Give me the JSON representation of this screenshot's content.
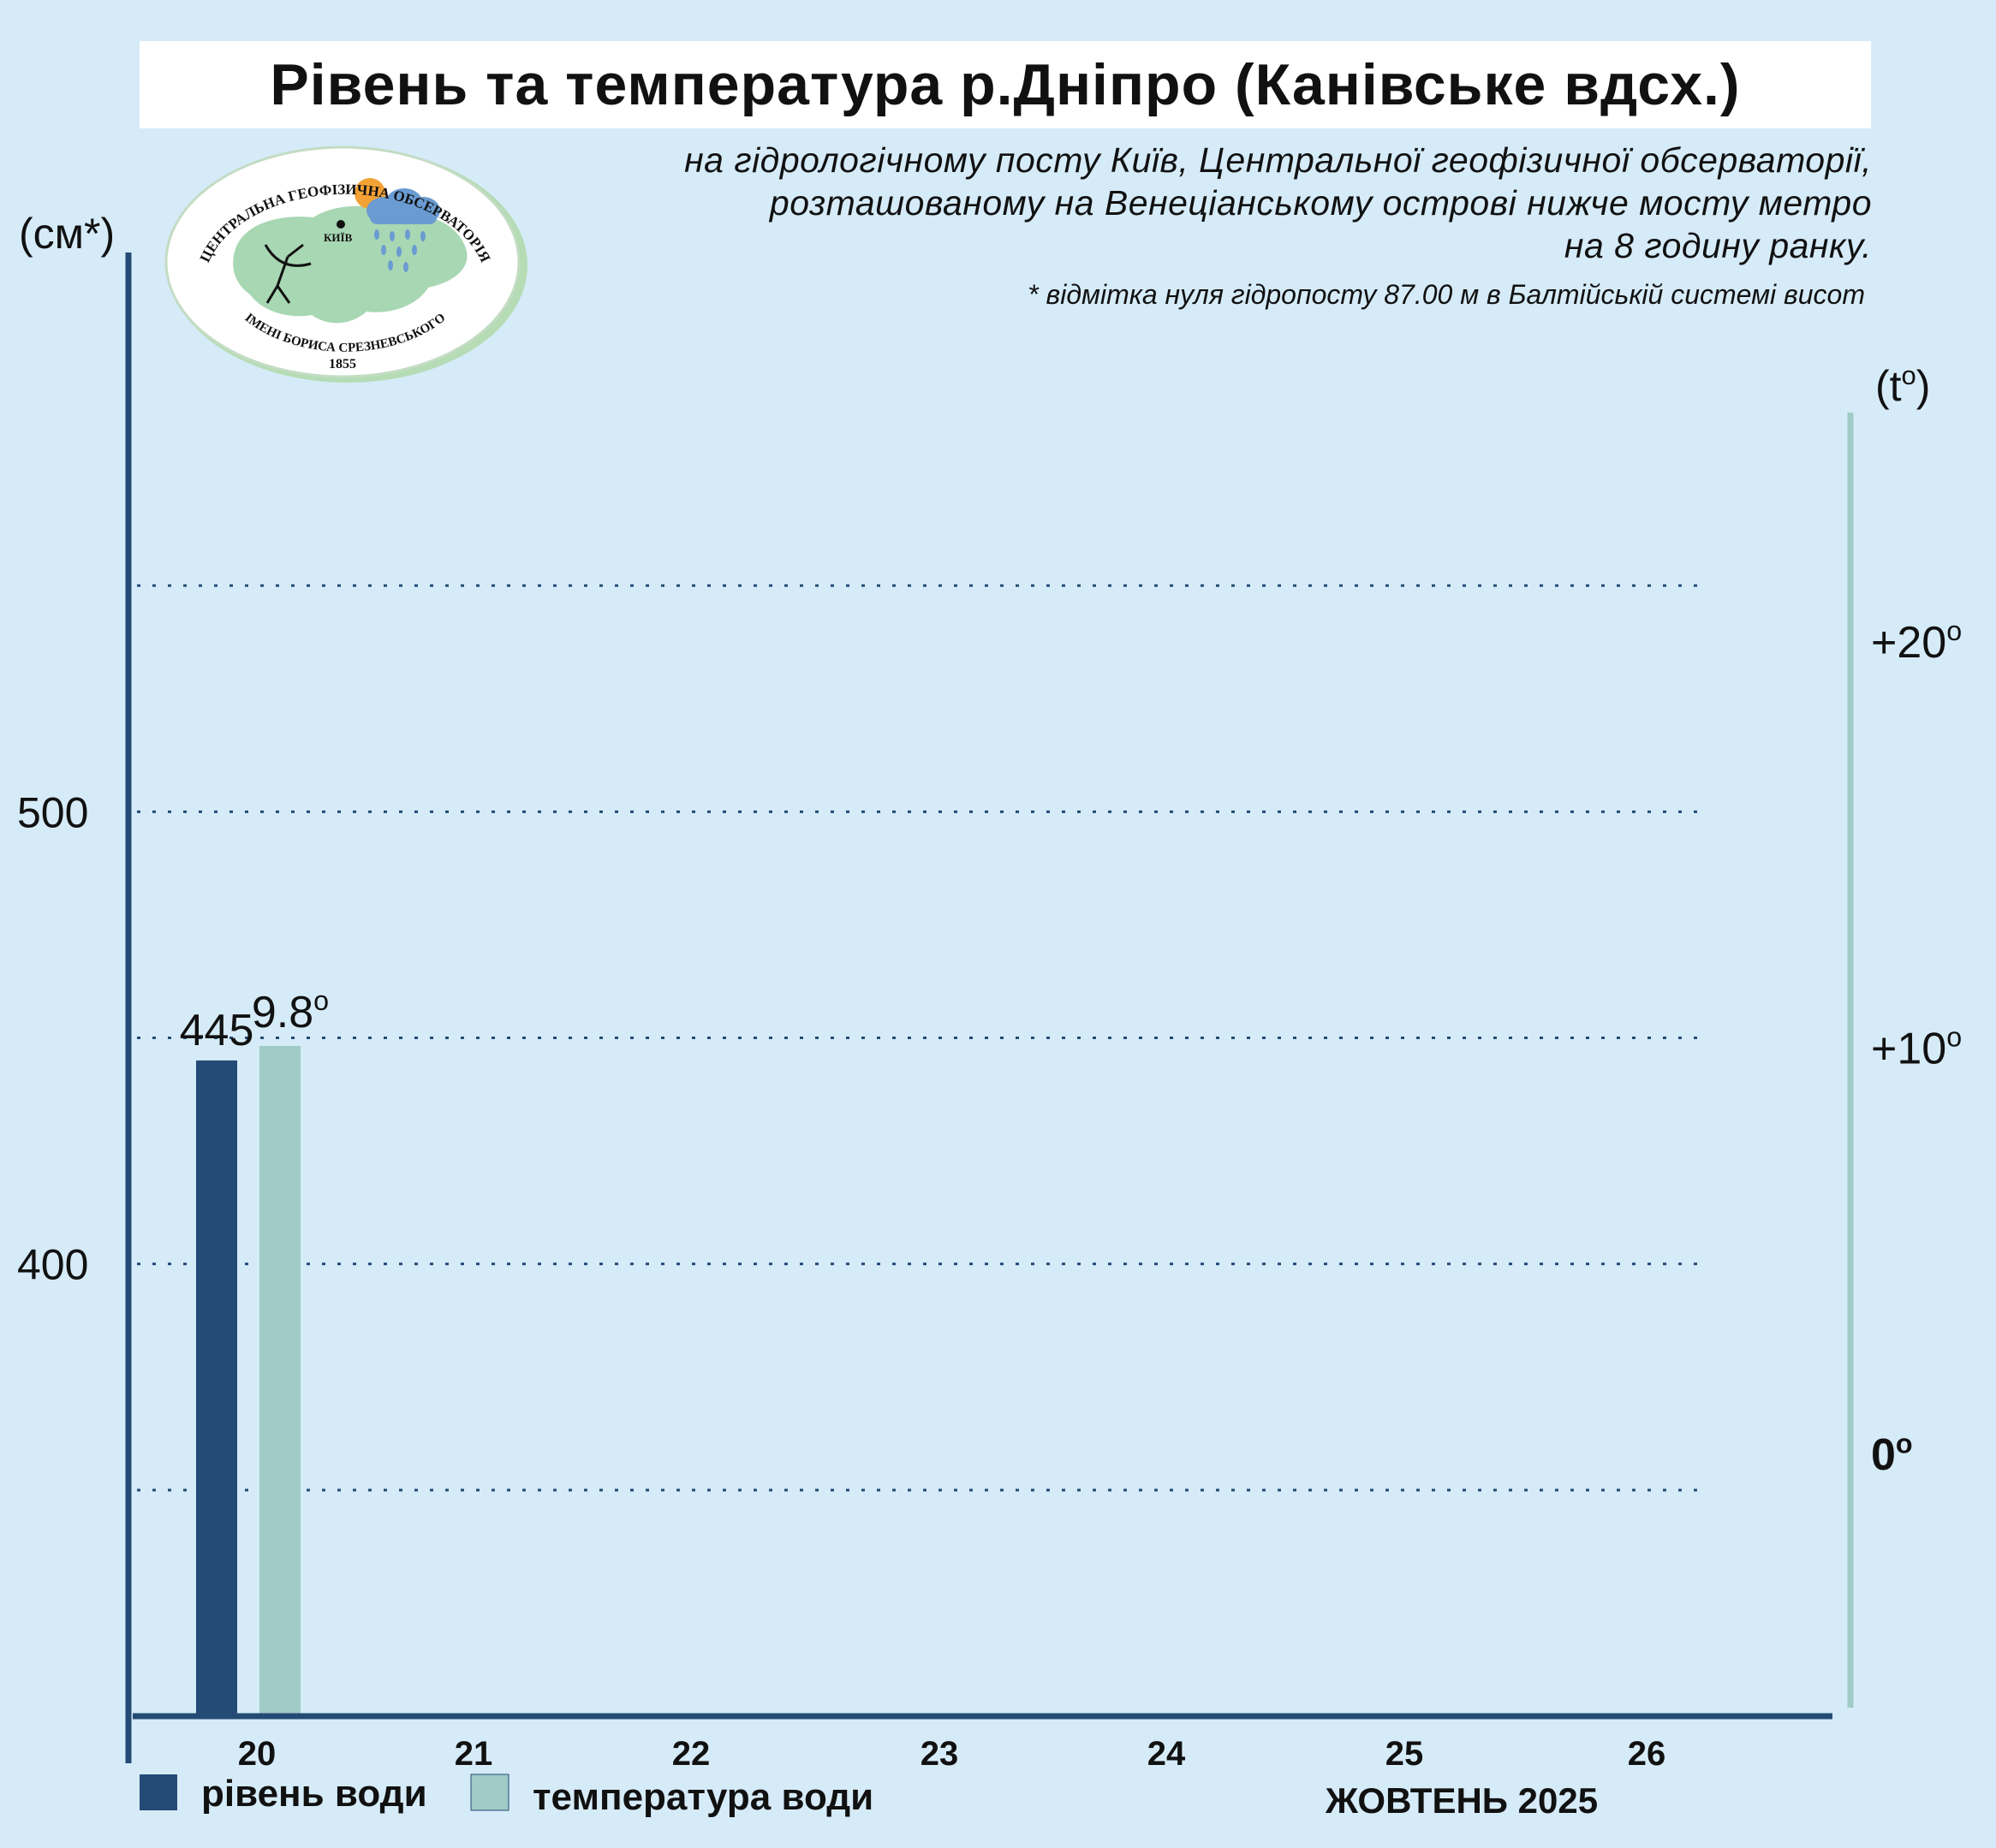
{
  "title": "Рівень та температура р.Дніпро (Канівське вдсх.)",
  "subtitle_lines": [
    "на гідрологічному посту Київ, Центральної геофізичної обсерваторії,",
    "розташованому на Венеціанському острові нижче мосту метро",
    "на 8 годину ранку."
  ],
  "footnote": "* відмітка нуля гідропосту 87.00 м в Балтійській системі висот",
  "logo": {
    "top_text": "ЦЕНТРАЛЬНА ГЕОФІЗИЧНА ОБСЕРВАТОРІЯ",
    "bottom_text": "ІМЕНІ БОРИСА СРЕЗНЕВСЬКОГО",
    "year": "1855",
    "city": "КИЇВ"
  },
  "colors": {
    "level": "#234b75",
    "temperature": "#a0cbc6",
    "background": "#d6ebf8",
    "grid": "#234b75"
  },
  "chart_data": {
    "type": "bar",
    "x_label": "ЖОВТЕНЬ 2025",
    "categories": [
      "20",
      "21",
      "22",
      "23",
      "24",
      "25",
      "26"
    ],
    "left_axis": {
      "label": "(см*)",
      "ticks": [
        {
          "value": 400,
          "label": "400"
        },
        {
          "value": 500,
          "label": "500"
        }
      ],
      "range": [
        300,
        600
      ]
    },
    "right_axis": {
      "label": "(to)",
      "ticks": [
        {
          "value": 0,
          "label": "0o"
        },
        {
          "value": 10,
          "label": "+10o"
        },
        {
          "value": 20,
          "label": "+20o"
        }
      ],
      "range": [
        -6.7,
        26.7
      ]
    },
    "grid_levels": [
      350,
      400,
      450,
      500,
      550
    ],
    "series": [
      {
        "name": "рівень води",
        "axis": "left",
        "values": [
          445,
          null,
          null,
          null,
          null,
          null,
          null
        ],
        "value_labels": [
          "445",
          "",
          "",
          "",
          "",
          "",
          ""
        ]
      },
      {
        "name": "температура води",
        "axis": "right",
        "values": [
          9.8,
          null,
          null,
          null,
          null,
          null,
          null
        ],
        "value_labels": [
          "9.8o",
          "",
          "",
          "",
          "",
          "",
          ""
        ]
      }
    ]
  }
}
